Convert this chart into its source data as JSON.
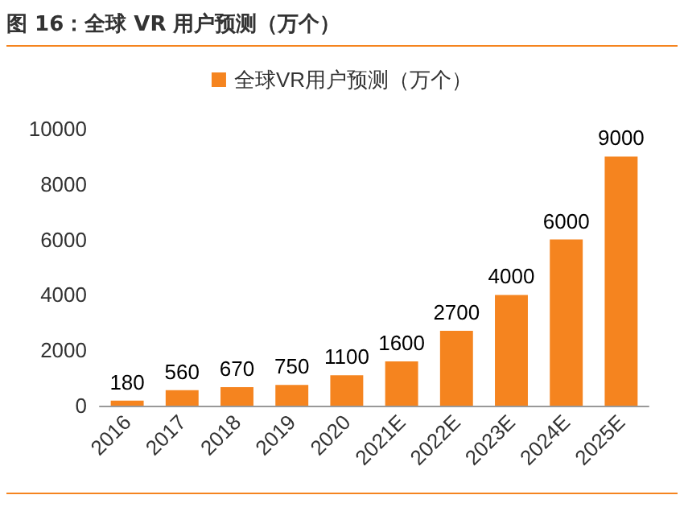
{
  "chart_data": {
    "type": "bar",
    "title": "图 16：全球 VR 用户预测（万个）",
    "categories": [
      "2016",
      "2017",
      "2018",
      "2019",
      "2020",
      "2021E",
      "2022E",
      "2023E",
      "2024E",
      "2025E"
    ],
    "series": [
      {
        "name": "全球VR用户预测（万个）",
        "color": "#f5841f",
        "values": [
          180,
          560,
          670,
          750,
          1100,
          1600,
          2700,
          4000,
          6000,
          9000
        ]
      }
    ],
    "ylim": [
      0,
      10000
    ],
    "yticks": [
      0,
      2000,
      4000,
      6000,
      8000,
      10000
    ],
    "data_labels": true,
    "grid": false,
    "legend": "top"
  }
}
